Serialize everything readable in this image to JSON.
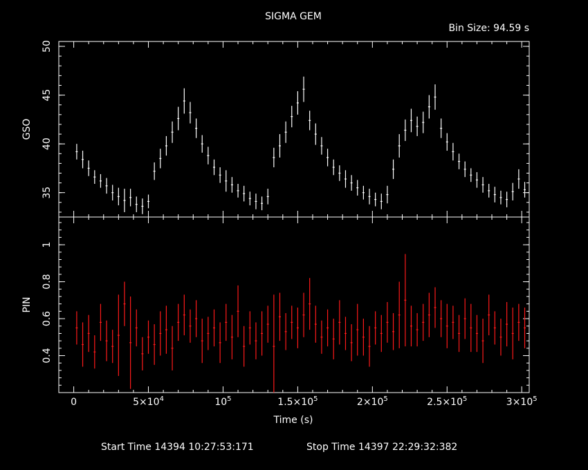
{
  "header": {
    "title": "SIGMA GEM",
    "bin_size": "Bin Size: 94.59 s"
  },
  "footer": {
    "start_time": "Start Time 14394 10:27:53:171",
    "stop_time": "Stop Time 14397 22:29:32:382"
  },
  "colors": {
    "gso": "#ffffff",
    "pin": "#ff1a1a",
    "axes": "#ffffff",
    "background": "#000000"
  },
  "chart_data": [
    {
      "type": "scatter",
      "panel": "top",
      "ylabel": "GSO",
      "xlim": [
        -10000,
        305000
      ],
      "ylim": [
        32.5,
        50.5
      ],
      "yticks": [
        {
          "v": 35,
          "label": "35"
        },
        {
          "v": 40,
          "label": "40"
        },
        {
          "v": 45,
          "label": "45"
        },
        {
          "v": 50,
          "label": "50"
        }
      ],
      "series": [
        {
          "x": [
            2000,
            6000,
            10000,
            14000,
            18000,
            22000,
            26000,
            30000,
            34000,
            38000,
            42000,
            46000,
            50000,
            54000,
            58000,
            62000,
            66000,
            70000,
            74000,
            78000,
            82000,
            86000,
            90000,
            94000,
            98000,
            102000,
            106000,
            110000,
            114000,
            118000,
            122000,
            126000,
            130000,
            134000,
            138000,
            142000,
            146000,
            150000,
            154000,
            158000,
            162000,
            166000,
            170000,
            174000,
            178000,
            182000,
            186000,
            190000,
            194000,
            198000,
            202000,
            206000,
            210000,
            214000,
            218000,
            222000,
            226000,
            230000,
            234000,
            238000,
            242000,
            246000,
            250000,
            254000,
            258000,
            262000,
            266000,
            270000,
            274000,
            278000,
            282000,
            286000,
            290000,
            294000,
            298000,
            302000
          ],
          "y": [
            39.2,
            38.4,
            37.5,
            36.6,
            36.2,
            35.7,
            35.0,
            34.6,
            34.2,
            34.5,
            33.8,
            33.6,
            34.1,
            37.2,
            38.5,
            39.8,
            41.2,
            42.6,
            44.4,
            43.2,
            41.6,
            40.0,
            38.8,
            37.6,
            36.8,
            36.2,
            35.8,
            35.2,
            34.9,
            34.4,
            34.1,
            33.9,
            34.6,
            38.6,
            39.8,
            41.2,
            42.8,
            44.2,
            45.6,
            42.4,
            41.0,
            39.8,
            38.6,
            37.6,
            37.0,
            36.4,
            36.0,
            35.5,
            35.0,
            34.6,
            34.3,
            34.1,
            34.8,
            37.4,
            39.8,
            41.4,
            42.4,
            41.8,
            42.2,
            43.8,
            44.8,
            41.6,
            40.2,
            39.2,
            38.2,
            37.4,
            36.8,
            36.3,
            35.8,
            35.2,
            34.8,
            34.5,
            34.3,
            35.1,
            36.4,
            35.3
          ],
          "err": [
            0.8,
            0.9,
            0.8,
            0.7,
            0.7,
            0.8,
            0.8,
            0.9,
            1.2,
            0.9,
            0.8,
            0.8,
            0.7,
            0.9,
            1.0,
            1.0,
            1.1,
            1.2,
            1.3,
            1.1,
            1.0,
            0.9,
            0.9,
            0.8,
            0.8,
            1.1,
            0.8,
            0.7,
            0.8,
            0.7,
            0.8,
            0.7,
            0.8,
            1.0,
            1.2,
            1.1,
            1.1,
            1.2,
            1.3,
            1.0,
            1.1,
            0.9,
            0.9,
            0.8,
            0.8,
            0.9,
            0.8,
            0.8,
            0.7,
            0.8,
            0.7,
            0.8,
            0.9,
            1.0,
            1.2,
            1.1,
            1.2,
            1.0,
            1.1,
            1.2,
            1.3,
            1.0,
            0.9,
            0.9,
            0.8,
            0.8,
            0.7,
            0.8,
            0.8,
            0.7,
            0.8,
            0.7,
            0.8,
            0.9,
            1.0,
            0.8
          ]
        }
      ]
    },
    {
      "type": "scatter",
      "panel": "bottom",
      "ylabel": "PIN",
      "xlabel": "Time (s)",
      "xlim": [
        -10000,
        305000
      ],
      "ylim": [
        0.2,
        1.15
      ],
      "yticks": [
        {
          "v": 0.4,
          "label": "0.4"
        },
        {
          "v": 0.6,
          "label": "0.6"
        },
        {
          "v": 0.8,
          "label": "0.8"
        },
        {
          "v": 1.0,
          "label": "1"
        }
      ],
      "xticks": [
        {
          "v": 0,
          "label": "0",
          "base": "0",
          "exp": ""
        },
        {
          "v": 50000,
          "label": "5×10^4",
          "base": "5×10",
          "exp": "4"
        },
        {
          "v": 100000,
          "label": "10^5",
          "base": "10",
          "exp": "5"
        },
        {
          "v": 150000,
          "label": "1.5×10^5",
          "base": "1.5×10",
          "exp": "5"
        },
        {
          "v": 200000,
          "label": "2×10^5",
          "base": "2×10",
          "exp": "5"
        },
        {
          "v": 250000,
          "label": "2.5×10^5",
          "base": "2.5×10",
          "exp": "5"
        },
        {
          "v": 300000,
          "label": "3×10^5",
          "base": "3×10",
          "exp": "5"
        }
      ],
      "series": [
        {
          "x": [
            2000,
            6000,
            10000,
            14000,
            18000,
            22000,
            26000,
            30000,
            34000,
            38000,
            42000,
            46000,
            50000,
            54000,
            58000,
            62000,
            66000,
            70000,
            74000,
            78000,
            82000,
            86000,
            90000,
            94000,
            98000,
            102000,
            106000,
            110000,
            114000,
            118000,
            122000,
            126000,
            130000,
            134000,
            138000,
            142000,
            146000,
            150000,
            154000,
            158000,
            162000,
            166000,
            170000,
            174000,
            178000,
            182000,
            186000,
            190000,
            194000,
            198000,
            202000,
            206000,
            210000,
            214000,
            218000,
            222000,
            226000,
            230000,
            234000,
            238000,
            242000,
            246000,
            250000,
            254000,
            258000,
            262000,
            266000,
            270000,
            274000,
            278000,
            282000,
            286000,
            290000,
            294000,
            298000,
            302000
          ],
          "y": [
            0.55,
            0.46,
            0.52,
            0.42,
            0.58,
            0.48,
            0.45,
            0.51,
            0.68,
            0.47,
            0.55,
            0.41,
            0.5,
            0.46,
            0.52,
            0.54,
            0.44,
            0.58,
            0.62,
            0.56,
            0.6,
            0.48,
            0.52,
            0.55,
            0.47,
            0.58,
            0.5,
            0.64,
            0.45,
            0.55,
            0.48,
            0.52,
            0.57,
            0.45,
            0.61,
            0.53,
            0.58,
            0.55,
            0.62,
            0.68,
            0.57,
            0.5,
            0.55,
            0.49,
            0.58,
            0.52,
            0.47,
            0.54,
            0.5,
            0.45,
            0.55,
            0.52,
            0.58,
            0.53,
            0.62,
            0.7,
            0.56,
            0.54,
            0.58,
            0.62,
            0.66,
            0.6,
            0.56,
            0.58,
            0.52,
            0.6,
            0.55,
            0.52,
            0.48,
            0.62,
            0.55,
            0.5,
            0.57,
            0.52,
            0.58,
            0.55
          ],
          "err": [
            0.09,
            0.12,
            0.1,
            0.09,
            0.1,
            0.11,
            0.09,
            0.22,
            0.12,
            0.25,
            0.1,
            0.09,
            0.09,
            0.11,
            0.12,
            0.13,
            0.12,
            0.1,
            0.11,
            0.09,
            0.1,
            0.12,
            0.09,
            0.1,
            0.11,
            0.1,
            0.12,
            0.14,
            0.11,
            0.09,
            0.1,
            0.12,
            0.1,
            0.28,
            0.13,
            0.1,
            0.09,
            0.11,
            0.12,
            0.14,
            0.1,
            0.09,
            0.1,
            0.11,
            0.12,
            0.09,
            0.1,
            0.14,
            0.1,
            0.11,
            0.09,
            0.1,
            0.11,
            0.1,
            0.18,
            0.25,
            0.11,
            0.09,
            0.1,
            0.12,
            0.11,
            0.1,
            0.12,
            0.09,
            0.1,
            0.11,
            0.13,
            0.1,
            0.12,
            0.11,
            0.09,
            0.1,
            0.12,
            0.14,
            0.1,
            0.11
          ]
        }
      ]
    }
  ]
}
